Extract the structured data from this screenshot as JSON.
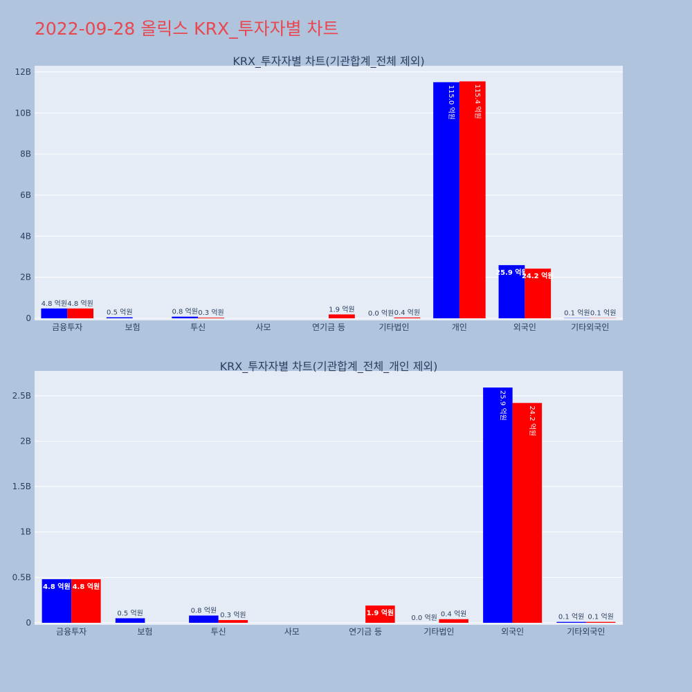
{
  "header": {
    "title": "2022-09-28 올릭스 KRX_투자자별 차트"
  },
  "colors": {
    "buy": "#0000ff",
    "sell": "#ff0000",
    "plot_bg": "#e5ecf6",
    "page_bg": "#b0c4de",
    "title": "#e8474f",
    "text": "#2a3f5f"
  },
  "chart_data": [
    {
      "type": "bar",
      "title": "KRX_투자자별 차트(기관합계_전체 제외)",
      "categories": [
        "금융투자",
        "보험",
        "투신",
        "사모",
        "연기금 등",
        "기타법인",
        "개인",
        "외국인",
        "기타외국인"
      ],
      "series": [
        {
          "color": "#0000ff",
          "values": [
            480000000,
            50000000,
            80000000,
            0,
            0,
            0,
            11500000000,
            2590000000,
            10000000
          ],
          "labels": [
            "4.8 억원",
            "0.5 억원",
            "0.8 억원",
            "",
            "",
            "0.0 억원",
            "115.0 억원",
            "25.9 억원",
            "0.1 억원"
          ]
        },
        {
          "color": "#ff0000",
          "values": [
            480000000,
            0,
            30000000,
            0,
            190000000,
            40000000,
            11540000000,
            2420000000,
            10000000
          ],
          "labels": [
            "4.8 억원",
            "",
            "0.3 억원",
            "",
            "1.9 억원",
            "0.4 억원",
            "115.4 억원",
            "24.2 억원",
            "0.1 억원"
          ]
        }
      ],
      "ylim": [
        0,
        12200000000
      ],
      "yticks": [
        0,
        2000000000,
        4000000000,
        6000000000,
        8000000000,
        10000000000,
        12000000000
      ],
      "ytick_labels": [
        "0",
        "2B",
        "4B",
        "6B",
        "8B",
        "10B",
        "12B"
      ],
      "grid": true
    },
    {
      "type": "bar",
      "title": "KRX_투자자별 차트(기관합계_전체_개인 제외)",
      "categories": [
        "금융투자",
        "보험",
        "투신",
        "사모",
        "연기금 등",
        "기타법인",
        "외국인",
        "기타외국인"
      ],
      "series": [
        {
          "color": "#0000ff",
          "values": [
            480000000,
            50000000,
            80000000,
            0,
            0,
            0,
            2590000000,
            10000000
          ],
          "labels": [
            "4.8 억원",
            "0.5 억원",
            "0.8 억원",
            "",
            "",
            "0.0 억원",
            "25.9 억원",
            "0.1 억원"
          ]
        },
        {
          "color": "#ff0000",
          "values": [
            480000000,
            0,
            30000000,
            0,
            190000000,
            40000000,
            2420000000,
            10000000
          ],
          "labels": [
            "4.8 억원",
            "",
            "0.3 억원",
            "",
            "1.9 억원",
            "0.4 억원",
            "24.2 억원",
            "0.1 억원"
          ]
        }
      ],
      "ylim": [
        0,
        2750000000
      ],
      "yticks": [
        0,
        500000000,
        1000000000,
        1500000000,
        2000000000,
        2500000000
      ],
      "ytick_labels": [
        "0",
        "0.5B",
        "1B",
        "1.5B",
        "2B",
        "2.5B"
      ],
      "grid": true
    }
  ]
}
